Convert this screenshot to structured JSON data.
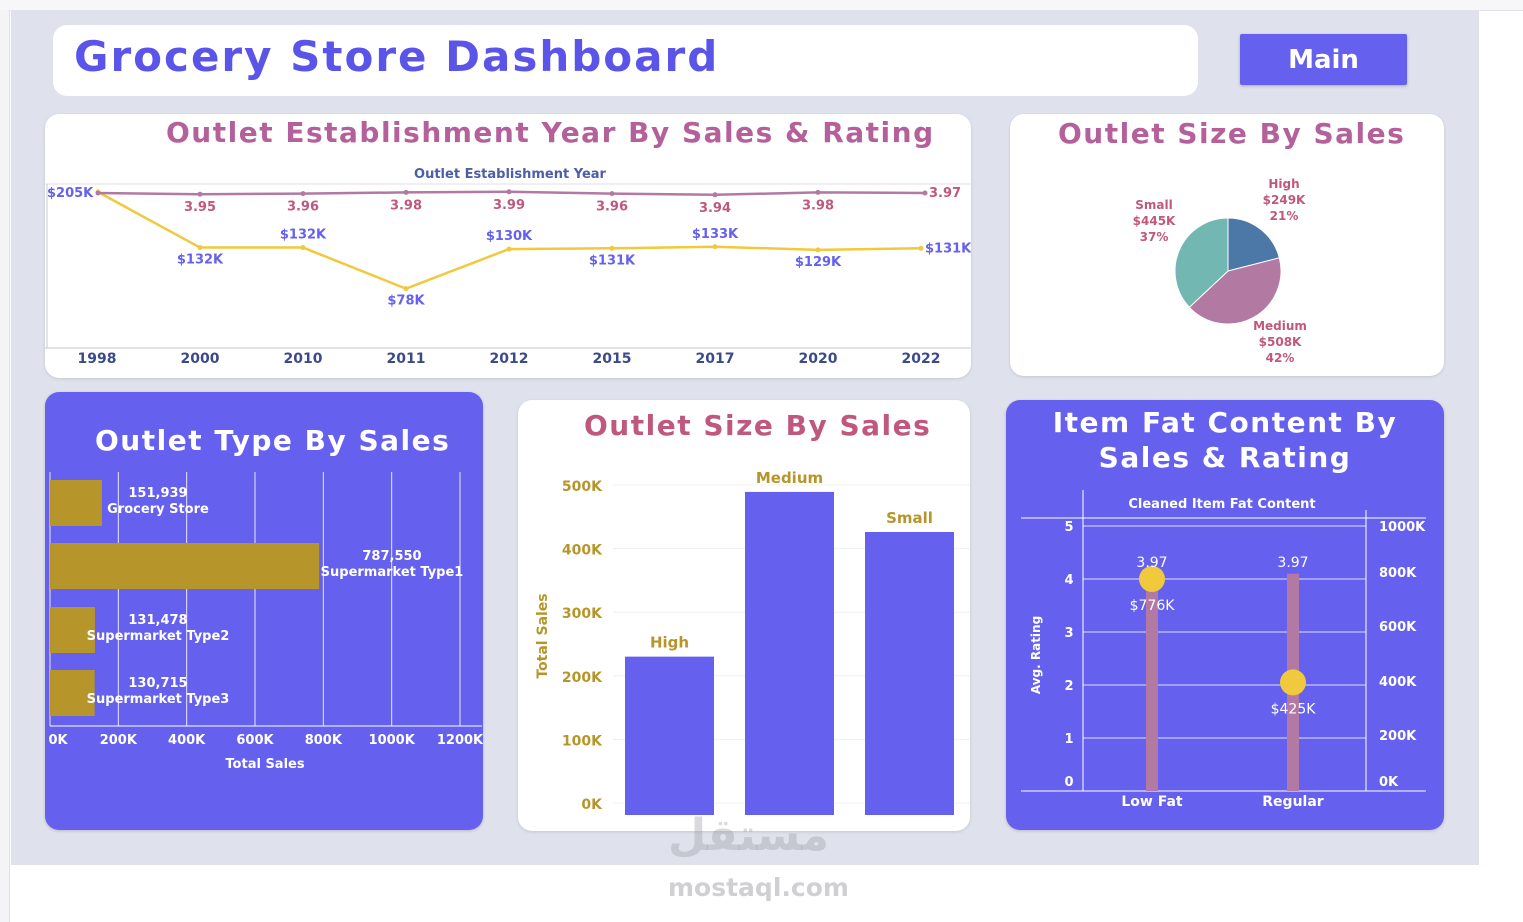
{
  "dashboard": {
    "title": "Grocery Store Dashboard",
    "main_button": "Main"
  },
  "colors": {
    "purple": "#6561ee",
    "pink": "#c0587d",
    "yellow": "#f0c93c",
    "olive": "#b6962a",
    "teal": "#72b7b2",
    "blue": "#4c78a8",
    "mauve": "#b279a2"
  },
  "line_panel": {
    "title": "Outlet Establishment Year By Sales & Rating",
    "legend_title": "Outlet Establishment Year",
    "first_labels": "$205K"
  },
  "pie_panel": {
    "title": "Outlet Size By Sales"
  },
  "hbar_panel": {
    "title": "Outlet Type By Sales",
    "x_title": "Total Sales",
    "ticks": [
      "0K",
      "200K",
      "400K",
      "600K",
      "800K",
      "1000K",
      "1200K"
    ]
  },
  "vbar_panel": {
    "title": "Outlet Size By Sales",
    "y_title": "Total Sales",
    "ticks": [
      "0K",
      "100K",
      "200K",
      "300K",
      "400K",
      "500K"
    ]
  },
  "fat_panel": {
    "title_line1": "Item Fat Content By",
    "title_line2": "Sales & Rating",
    "legend_title": "Cleaned Item Fat Content",
    "y_title": "Avg. Rating",
    "left_ticks": [
      "0",
      "1",
      "2",
      "3",
      "4",
      "5"
    ],
    "right_ticks": [
      "0K",
      "200K",
      "400K",
      "600K",
      "800K",
      "1000K"
    ]
  },
  "watermark": {
    "arabic": "مستقل",
    "site": "mostaql.com"
  },
  "chart_data": [
    {
      "type": "line",
      "title": "Outlet Establishment Year By Sales & Rating",
      "categories": [
        "1998",
        "2000",
        "2010",
        "2011",
        "2012",
        "2015",
        "2017",
        "2020",
        "2022"
      ],
      "series": [
        {
          "values": [
            205,
            132,
            132,
            78,
            130,
            131,
            133,
            129,
            131
          ],
          "labels": [
            "$205K",
            "$132K",
            "$132K",
            "$78K",
            "$130K",
            "$131K",
            "$133K",
            "$129K",
            "$131K"
          ],
          "color": "#f0c93c"
        },
        {
          "values": [
            3.97,
            3.95,
            3.96,
            3.98,
            3.99,
            3.96,
            3.94,
            3.98,
            3.97
          ],
          "labels": [
            "3.97",
            "3.95",
            "3.96",
            "3.98",
            "3.99",
            "3.96",
            "3.94",
            "3.98",
            "3.97"
          ],
          "color": "#b279a2"
        }
      ]
    },
    {
      "type": "pie",
      "title": "Outlet Size By Sales",
      "slices": [
        {
          "label": "High",
          "value": "$249K",
          "pct": "21%",
          "share": 0.21,
          "color": "#4c78a8"
        },
        {
          "label": "Medium",
          "value": "$508K",
          "pct": "42%",
          "share": 0.42,
          "color": "#b279a2"
        },
        {
          "label": "Small",
          "value": "$445K",
          "pct": "37%",
          "share": 0.37,
          "color": "#72b7b2"
        }
      ]
    },
    {
      "type": "bar",
      "orientation": "horizontal",
      "title": "Outlet Type By Sales",
      "xlabel": "Total Sales",
      "xlim": [
        0,
        1200000
      ],
      "categories": [
        "Grocery Store",
        "Supermarket Type1",
        "Supermarket Type2",
        "Supermarket Type3"
      ],
      "values": [
        151939,
        787550,
        131478,
        130715
      ],
      "value_labels": [
        "151,939",
        "787,550",
        "131,478",
        "130,715"
      ]
    },
    {
      "type": "bar",
      "title": "Outlet Size By Sales",
      "ylabel": "Total Sales",
      "ylim": [
        0,
        500000
      ],
      "categories": [
        "High",
        "Medium",
        "Small"
      ],
      "values": [
        249000,
        508000,
        445000
      ]
    },
    {
      "type": "scatter",
      "title": "Item Fat Content By Sales & Rating",
      "xlabel": "Cleaned Item Fat Content",
      "ylabel": "Avg. Rating",
      "categories": [
        "Low Fat",
        "Regular"
      ],
      "rating": [
        3.97,
        3.97
      ],
      "rating_labels": [
        "3.97",
        "3.97"
      ],
      "sales": [
        776,
        425
      ],
      "sales_labels": [
        "$776K",
        "$425K"
      ],
      "ylim_rating": [
        0,
        5
      ],
      "ylim_sales": [
        0,
        1000
      ]
    }
  ]
}
